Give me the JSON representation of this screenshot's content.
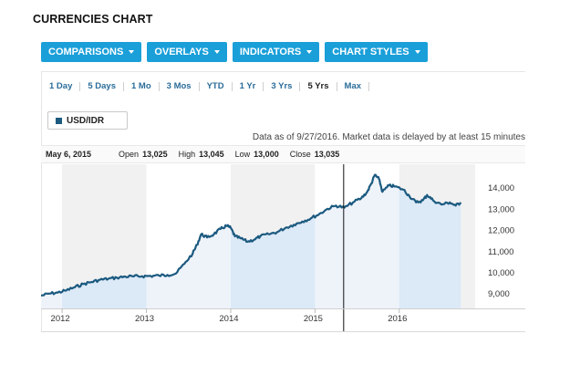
{
  "page": {
    "title": "CURRENCIES CHART"
  },
  "toolbar": [
    {
      "label": "COMPARISONS"
    },
    {
      "label": "OVERLAYS"
    },
    {
      "label": "INDICATORS"
    },
    {
      "label": "CHART STYLES"
    }
  ],
  "ranges": [
    {
      "label": "1 Day"
    },
    {
      "label": "5 Days"
    },
    {
      "label": "1 Mo"
    },
    {
      "label": "3 Mos"
    },
    {
      "label": "YTD"
    },
    {
      "label": "1 Yr"
    },
    {
      "label": "3 Yrs"
    },
    {
      "label": "5 Yrs",
      "active": true
    },
    {
      "label": "Max"
    }
  ],
  "symbol": {
    "label": "USD/IDR",
    "color": "#1c5a80"
  },
  "status": {
    "as_of": "Data as of 9/27/2016. Market data is delayed by at least 15 minutes"
  },
  "ohlc": {
    "date": "May 6, 2015",
    "open_label": "Open",
    "open": "13,025",
    "high_label": "High",
    "high": "13,045",
    "low_label": "Low",
    "low": "13,000",
    "close_label": "Close",
    "close": "13,035"
  },
  "chart_data": {
    "type": "area",
    "series": [
      {
        "name": "USD/IDR",
        "x": [
          2011.75,
          2011.85,
          2011.95,
          2012.05,
          2012.15,
          2012.25,
          2012.35,
          2012.45,
          2012.55,
          2012.65,
          2012.75,
          2012.85,
          2012.95,
          2013.05,
          2013.15,
          2013.25,
          2013.35,
          2013.45,
          2013.55,
          2013.6,
          2013.65,
          2013.72,
          2013.8,
          2013.88,
          2013.95,
          2014.0,
          2014.05,
          2014.12,
          2014.2,
          2014.28,
          2014.35,
          2014.45,
          2014.55,
          2014.65,
          2014.75,
          2014.85,
          2014.95,
          2015.05,
          2015.15,
          2015.25,
          2015.35,
          2015.45,
          2015.55,
          2015.62,
          2015.67,
          2015.71,
          2015.76,
          2015.8,
          2015.88,
          2015.95,
          2016.05,
          2016.12,
          2016.2,
          2016.28,
          2016.33,
          2016.4,
          2016.5,
          2016.6,
          2016.67,
          2016.73
        ],
        "values": [
          8900,
          9000,
          9050,
          9150,
          9300,
          9450,
          9550,
          9650,
          9700,
          9750,
          9800,
          9810,
          9820,
          9830,
          9850,
          9880,
          9950,
          10400,
          10900,
          11300,
          11800,
          11650,
          11800,
          12050,
          12200,
          12100,
          11700,
          11600,
          11450,
          11550,
          11700,
          11800,
          11900,
          12100,
          12250,
          12400,
          12550,
          12750,
          13000,
          13150,
          13050,
          13300,
          13500,
          13800,
          14200,
          14600,
          14400,
          13800,
          14100,
          14050,
          13900,
          13600,
          13300,
          13400,
          13650,
          13400,
          13200,
          13300,
          13150,
          13300
        ]
      }
    ],
    "x_ticks": [
      {
        "value": 2012,
        "label": "2012"
      },
      {
        "value": 2013,
        "label": "2013"
      },
      {
        "value": 2014,
        "label": "2014"
      },
      {
        "value": 2015,
        "label": "2015"
      },
      {
        "value": 2016,
        "label": "2016"
      }
    ],
    "y_ticks": [
      {
        "value": 9000,
        "label": "9,000"
      },
      {
        "value": 10000,
        "label": "10,000"
      },
      {
        "value": 11000,
        "label": "11,000"
      },
      {
        "value": 12000,
        "label": "12,000"
      },
      {
        "value": 13000,
        "label": "13,000"
      },
      {
        "value": 14000,
        "label": "14,000"
      }
    ],
    "xlim": [
      2011.75,
      2016.9
    ],
    "ylim": [
      8300,
      15100
    ],
    "crosshair_x": 2015.34,
    "colors": {
      "line": "#1c5a80",
      "fill_light": "#eef3fa",
      "fill_dark": "#dce9f7",
      "band": "#f1f1f1"
    }
  }
}
